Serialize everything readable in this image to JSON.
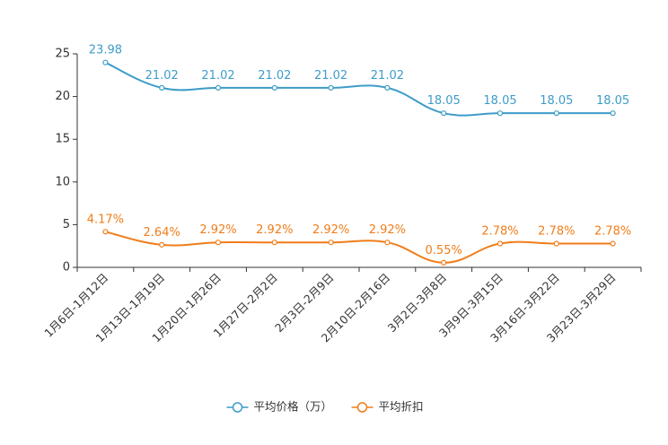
{
  "chart_data": {
    "type": "line",
    "title": "",
    "xlabel": "",
    "ylabel": "",
    "ylim": [
      0,
      25
    ],
    "yticks": [
      0,
      5,
      10,
      15,
      20,
      25
    ],
    "categories": [
      "1月6日-1月12日",
      "1月13日-1月19日",
      "1月20日-1月26日",
      "1月27日-2月2日",
      "2月3日-2月9日",
      "2月10日-2月16日",
      "3月2日-3月8日",
      "3月9日-3月15日",
      "3月16日-3月22日",
      "3月23日-3月29日"
    ],
    "series": [
      {
        "name": "平均价格（万）",
        "color": "#3d9cc8",
        "values": [
          23.98,
          21.02,
          21.02,
          21.02,
          21.02,
          21.02,
          18.05,
          18.05,
          18.05,
          18.05
        ],
        "labels": [
          "23.98",
          "21.02",
          "21.02",
          "21.02",
          "21.02",
          "21.02",
          "18.05",
          "18.05",
          "18.05",
          "18.05"
        ]
      },
      {
        "name": "平均折扣",
        "color": "#f07d1a",
        "values": [
          4.17,
          2.64,
          2.92,
          2.92,
          2.92,
          2.92,
          0.55,
          2.78,
          2.78,
          2.78
        ],
        "labels": [
          "4.17%",
          "2.64%",
          "2.92%",
          "2.92%",
          "2.92%",
          "2.92%",
          "0.55%",
          "2.78%",
          "2.78%",
          "2.78%"
        ]
      }
    ],
    "legend_position": "bottom-center"
  }
}
